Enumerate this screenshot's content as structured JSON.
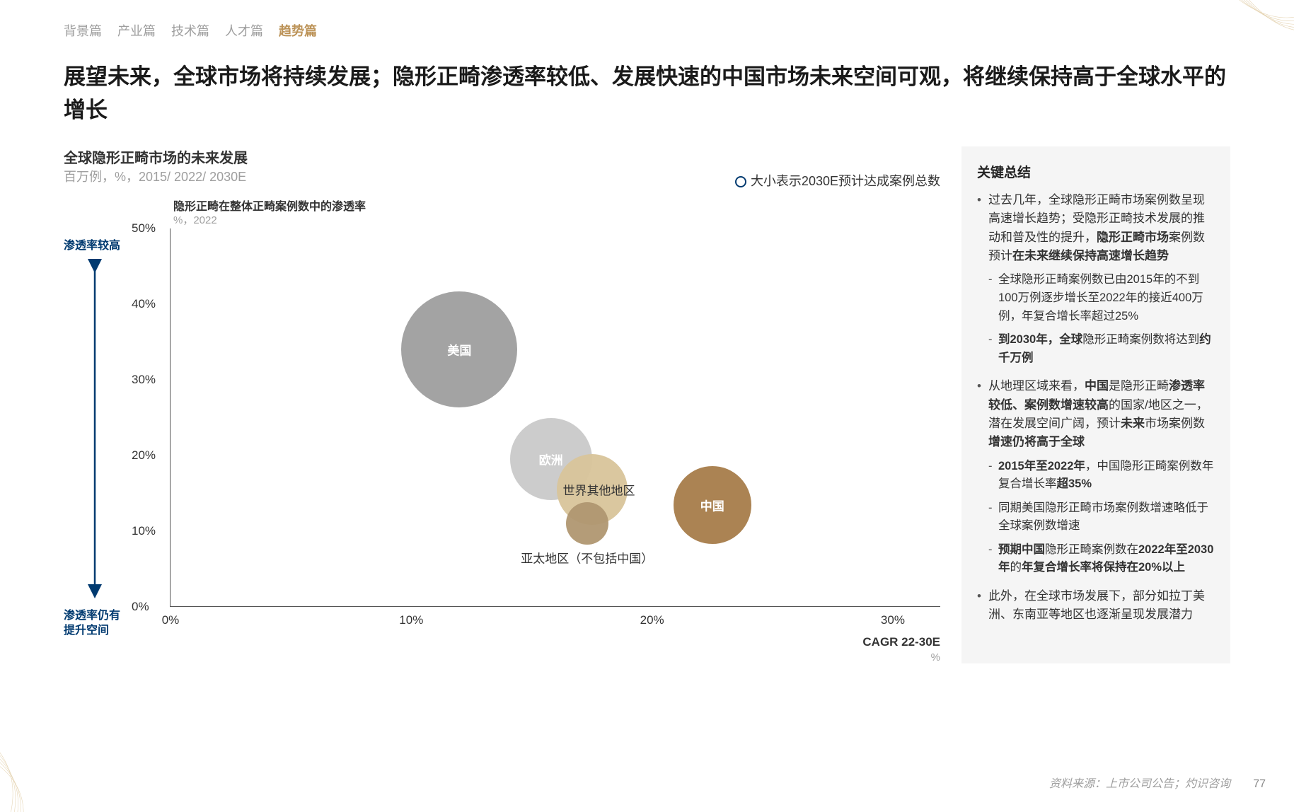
{
  "nav": {
    "items": [
      "背景篇",
      "产业篇",
      "技术篇",
      "人才篇",
      "趋势篇"
    ],
    "active_index": 4
  },
  "title": "展望未来，全球市场将持续发展；隐形正畸渗透率较低、发展快速的中国市场未来空间可观，将继续保持高于全球水平的增长",
  "chart": {
    "type": "bubble",
    "title": "全球隐形正畸市场的未来发展",
    "subtitle": "百万例，%，2015/ 2022/ 2030E",
    "legend_note": "大小表示2030E预计达成案例总数",
    "legend_circle_color": "#003a70",
    "y_axis_title": "隐形正畸在整体正畸案例数中的渗透率",
    "y_axis_sub": "%，2022",
    "x_axis_label": "CAGR 22-30E",
    "x_axis_sub": "%",
    "arrow_top": "渗透率较高",
    "arrow_bottom": "渗透率仍有\n提升空间",
    "arrow_color": "#003a70",
    "xlim": [
      0,
      32
    ],
    "ylim": [
      0,
      50
    ],
    "xticks": [
      {
        "v": 0,
        "l": "0%"
      },
      {
        "v": 10,
        "l": "10%"
      },
      {
        "v": 20,
        "l": "20%"
      },
      {
        "v": 30,
        "l": "30%"
      }
    ],
    "yticks": [
      {
        "v": 0,
        "l": "0%"
      },
      {
        "v": 10,
        "l": "10%"
      },
      {
        "v": 20,
        "l": "20%"
      },
      {
        "v": 30,
        "l": "30%"
      },
      {
        "v": 40,
        "l": "40%"
      },
      {
        "v": 50,
        "l": "50%"
      }
    ],
    "background_color": "#ffffff",
    "axis_color": "#555555",
    "bubbles": [
      {
        "name": "美国",
        "x": 12.0,
        "y": 34.0,
        "r": 82,
        "color": "#9e9e9e",
        "label_pos": "inside"
      },
      {
        "name": "欧洲",
        "x": 15.8,
        "y": 19.5,
        "r": 58,
        "color": "#c9c9c9",
        "label_pos": "inside"
      },
      {
        "name": "世界其他地区",
        "x": 17.5,
        "y": 15.5,
        "r": 50,
        "color": "#d8c49a",
        "label_pos": "inside-dark",
        "label_dx": 10
      },
      {
        "name": "亚太地区（不包括中国）",
        "x": 17.3,
        "y": 11.0,
        "r": 30,
        "color": "#b09771",
        "label_pos": "below",
        "label_dy": 48
      },
      {
        "name": "中国",
        "x": 22.5,
        "y": 13.5,
        "r": 55,
        "color": "#a67c4a",
        "label_pos": "inside"
      }
    ]
  },
  "sidebar": {
    "title": "关键总结",
    "items": [
      {
        "html": "过去几年，全球隐形正畸市场案例数呈现高速增长趋势；受隐形正畸技术发展的推动和普及性的提升，<b>隐形正畸市场</b>案例数预计<b>在未来继续保持高速增长趋势</b>",
        "sub": [
          "全球隐形正畸案例数已由2015年的不到100万例逐步增长至2022年的接近400万例，年复合增长率超过25%",
          "<b>到2030年，全球</b>隐形正畸案例数将达到<b>约千万例</b>"
        ]
      },
      {
        "html": "从地理区域来看，<b>中国</b>是隐形正畸<b>渗透率较低、案例数增速较高</b>的国家/地区之一，潜在发展空间广阔，预计<b>未来</b>市场案例数<b>增速仍将高于全球</b>",
        "sub": [
          "<b>2015年至2022年</b>，中国隐形正畸案例数年复合增长率<b>超35%</b>",
          "同期美国隐形正畸市场案例数增速略低于全球案例数增速",
          "<b>预期中国</b>隐形正畸案例数在<b>2022年至2030年</b>的<b>年复合增长率将保持在20%以上</b>"
        ]
      },
      {
        "html": "此外，在全球市场发展下，部分如拉丁美洲、东南亚等地区也逐渐呈现发展潜力",
        "sub": []
      }
    ]
  },
  "footer": "资料来源：上市公司公告；灼识咨询",
  "page_number": "77"
}
